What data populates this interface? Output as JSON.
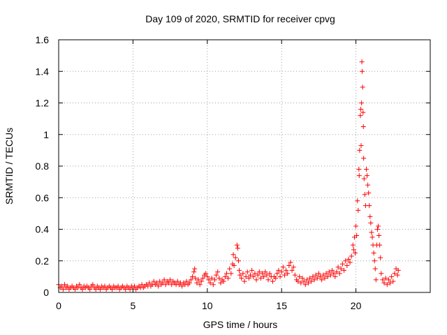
{
  "chart_data": {
    "type": "scatter",
    "title": "Day 109 of 2020, SRMTID for receiver cpvg",
    "xlabel": "GPS time / hours",
    "ylabel": "SRMTID / TECUs",
    "xlim": [
      0,
      25
    ],
    "ylim": [
      0,
      1.6
    ],
    "x_ticks": [
      0,
      5,
      10,
      15,
      20
    ],
    "x_tick_labels": [
      "0",
      "5",
      "10",
      "15",
      "20"
    ],
    "y_ticks": [
      0,
      0.2,
      0.4,
      0.6,
      0.8,
      1,
      1.2,
      1.4,
      1.6
    ],
    "y_tick_labels": [
      "0",
      "0.2",
      "0.4",
      "0.6",
      "0.8",
      "1",
      "1.2",
      "1.4",
      "1.6"
    ],
    "grid": true,
    "marker": "+",
    "color": "#ff0000",
    "series": [
      {
        "name": "SRMTID",
        "points": [
          [
            0.0,
            0.05
          ],
          [
            0.1,
            0.03
          ],
          [
            0.2,
            0.04
          ],
          [
            0.3,
            0.02
          ],
          [
            0.4,
            0.05
          ],
          [
            0.5,
            0.03
          ],
          [
            0.6,
            0.04
          ],
          [
            0.7,
            0.02
          ],
          [
            0.8,
            0.03
          ],
          [
            0.9,
            0.04
          ],
          [
            1.0,
            0.03
          ],
          [
            1.1,
            0.02
          ],
          [
            1.2,
            0.04
          ],
          [
            1.3,
            0.03
          ],
          [
            1.4,
            0.05
          ],
          [
            1.5,
            0.03
          ],
          [
            1.6,
            0.02
          ],
          [
            1.7,
            0.04
          ],
          [
            1.8,
            0.03
          ],
          [
            1.9,
            0.04
          ],
          [
            2.0,
            0.03
          ],
          [
            2.1,
            0.02
          ],
          [
            2.2,
            0.04
          ],
          [
            2.3,
            0.05
          ],
          [
            2.4,
            0.03
          ],
          [
            2.5,
            0.02
          ],
          [
            2.6,
            0.04
          ],
          [
            2.7,
            0.03
          ],
          [
            2.8,
            0.02
          ],
          [
            2.9,
            0.04
          ],
          [
            3.0,
            0.03
          ],
          [
            3.1,
            0.04
          ],
          [
            3.2,
            0.02
          ],
          [
            3.3,
            0.03
          ],
          [
            3.4,
            0.04
          ],
          [
            3.5,
            0.03
          ],
          [
            3.6,
            0.02
          ],
          [
            3.7,
            0.04
          ],
          [
            3.8,
            0.03
          ],
          [
            3.9,
            0.03
          ],
          [
            4.0,
            0.04
          ],
          [
            4.1,
            0.02
          ],
          [
            4.2,
            0.03
          ],
          [
            4.3,
            0.04
          ],
          [
            4.4,
            0.03
          ],
          [
            4.5,
            0.02
          ],
          [
            4.6,
            0.04
          ],
          [
            4.7,
            0.03
          ],
          [
            4.8,
            0.02
          ],
          [
            4.9,
            0.04
          ],
          [
            5.0,
            0.03
          ],
          [
            5.1,
            0.04
          ],
          [
            5.2,
            0.02
          ],
          [
            5.3,
            0.03
          ],
          [
            5.4,
            0.04
          ],
          [
            5.5,
            0.03
          ],
          [
            5.6,
            0.05
          ],
          [
            5.7,
            0.03
          ],
          [
            5.8,
            0.04
          ],
          [
            5.9,
            0.05
          ],
          [
            6.0,
            0.04
          ],
          [
            6.1,
            0.06
          ],
          [
            6.2,
            0.04
          ],
          [
            6.3,
            0.05
          ],
          [
            6.4,
            0.07
          ],
          [
            6.5,
            0.05
          ],
          [
            6.6,
            0.06
          ],
          [
            6.7,
            0.04
          ],
          [
            6.8,
            0.07
          ],
          [
            6.9,
            0.05
          ],
          [
            7.0,
            0.06
          ],
          [
            7.1,
            0.08
          ],
          [
            7.2,
            0.05
          ],
          [
            7.3,
            0.07
          ],
          [
            7.4,
            0.06
          ],
          [
            7.5,
            0.08
          ],
          [
            7.6,
            0.05
          ],
          [
            7.7,
            0.07
          ],
          [
            7.8,
            0.06
          ],
          [
            7.9,
            0.05
          ],
          [
            8.0,
            0.07
          ],
          [
            8.1,
            0.05
          ],
          [
            8.2,
            0.06
          ],
          [
            8.3,
            0.04
          ],
          [
            8.4,
            0.06
          ],
          [
            8.5,
            0.05
          ],
          [
            8.6,
            0.07
          ],
          [
            8.7,
            0.05
          ],
          [
            8.8,
            0.06
          ],
          [
            8.9,
            0.08
          ],
          [
            9.0,
            0.1
          ],
          [
            9.1,
            0.13
          ],
          [
            9.15,
            0.15
          ],
          [
            9.2,
            0.09
          ],
          [
            9.3,
            0.06
          ],
          [
            9.4,
            0.08
          ],
          [
            9.5,
            0.05
          ],
          [
            9.6,
            0.07
          ],
          [
            9.7,
            0.09
          ],
          [
            9.8,
            0.11
          ],
          [
            9.9,
            0.12
          ],
          [
            10.0,
            0.1
          ],
          [
            10.1,
            0.08
          ],
          [
            10.2,
            0.06
          ],
          [
            10.3,
            0.09
          ],
          [
            10.4,
            0.05
          ],
          [
            10.5,
            0.08
          ],
          [
            10.6,
            0.11
          ],
          [
            10.7,
            0.13
          ],
          [
            10.8,
            0.09
          ],
          [
            10.9,
            0.06
          ],
          [
            11.0,
            0.08
          ],
          [
            11.1,
            0.07
          ],
          [
            11.2,
            0.1
          ],
          [
            11.3,
            0.12
          ],
          [
            11.4,
            0.09
          ],
          [
            11.5,
            0.15
          ],
          [
            11.6,
            0.12
          ],
          [
            11.7,
            0.18
          ],
          [
            11.75,
            0.24
          ],
          [
            11.8,
            0.17
          ],
          [
            11.9,
            0.22
          ],
          [
            12.0,
            0.3
          ],
          [
            12.05,
            0.28
          ],
          [
            12.1,
            0.2
          ],
          [
            12.15,
            0.14
          ],
          [
            12.2,
            0.11
          ],
          [
            12.3,
            0.09
          ],
          [
            12.4,
            0.12
          ],
          [
            12.5,
            0.07
          ],
          [
            12.6,
            0.1
          ],
          [
            12.7,
            0.13
          ],
          [
            12.8,
            0.09
          ],
          [
            12.9,
            0.11
          ],
          [
            13.0,
            0.14
          ],
          [
            13.1,
            0.1
          ],
          [
            13.2,
            0.12
          ],
          [
            13.3,
            0.08
          ],
          [
            13.4,
            0.11
          ],
          [
            13.5,
            0.13
          ],
          [
            13.6,
            0.09
          ],
          [
            13.7,
            0.12
          ],
          [
            13.8,
            0.1
          ],
          [
            13.9,
            0.13
          ],
          [
            14.0,
            0.11
          ],
          [
            14.1,
            0.08
          ],
          [
            14.2,
            0.12
          ],
          [
            14.3,
            0.1
          ],
          [
            14.4,
            0.07
          ],
          [
            14.5,
            0.1
          ],
          [
            14.6,
            0.09
          ],
          [
            14.7,
            0.12
          ],
          [
            14.8,
            0.14
          ],
          [
            14.9,
            0.1
          ],
          [
            15.0,
            0.13
          ],
          [
            15.1,
            0.16
          ],
          [
            15.2,
            0.11
          ],
          [
            15.3,
            0.14
          ],
          [
            15.4,
            0.12
          ],
          [
            15.5,
            0.17
          ],
          [
            15.6,
            0.19
          ],
          [
            15.7,
            0.14
          ],
          [
            15.8,
            0.16
          ],
          [
            15.9,
            0.11
          ],
          [
            16.0,
            0.08
          ],
          [
            16.1,
            0.07
          ],
          [
            16.2,
            0.1
          ],
          [
            16.3,
            0.06
          ],
          [
            16.4,
            0.09
          ],
          [
            16.5,
            0.07
          ],
          [
            16.6,
            0.05
          ],
          [
            16.7,
            0.08
          ],
          [
            16.8,
            0.06
          ],
          [
            16.9,
            0.09
          ],
          [
            17.0,
            0.07
          ],
          [
            17.1,
            0.1
          ],
          [
            17.2,
            0.08
          ],
          [
            17.3,
            0.11
          ],
          [
            17.4,
            0.09
          ],
          [
            17.5,
            0.12
          ],
          [
            17.6,
            0.1
          ],
          [
            17.7,
            0.08
          ],
          [
            17.8,
            0.11
          ],
          [
            17.9,
            0.09
          ],
          [
            18.0,
            0.12
          ],
          [
            18.1,
            0.1
          ],
          [
            18.2,
            0.13
          ],
          [
            18.3,
            0.11
          ],
          [
            18.4,
            0.14
          ],
          [
            18.5,
            0.12
          ],
          [
            18.6,
            0.1
          ],
          [
            18.7,
            0.13
          ],
          [
            18.8,
            0.16
          ],
          [
            18.9,
            0.12
          ],
          [
            19.0,
            0.15
          ],
          [
            19.1,
            0.18
          ],
          [
            19.2,
            0.14
          ],
          [
            19.3,
            0.2
          ],
          [
            19.4,
            0.17
          ],
          [
            19.5,
            0.21
          ],
          [
            19.6,
            0.19
          ],
          [
            19.7,
            0.23
          ],
          [
            19.8,
            0.3
          ],
          [
            19.85,
            0.27
          ],
          [
            19.9,
            0.35
          ],
          [
            19.95,
            0.25
          ],
          [
            20.0,
            0.42
          ],
          [
            20.05,
            0.36
          ],
          [
            20.1,
            0.58
          ],
          [
            20.15,
            0.52
          ],
          [
            20.2,
            0.78
          ],
          [
            20.22,
            0.74
          ],
          [
            20.25,
            0.9
          ],
          [
            20.3,
            1.12
          ],
          [
            20.33,
            1.16
          ],
          [
            20.35,
            0.93
          ],
          [
            20.38,
            1.2
          ],
          [
            20.4,
            1.46
          ],
          [
            20.42,
            1.4
          ],
          [
            20.45,
            1.3
          ],
          [
            20.48,
            1.14
          ],
          [
            20.5,
            1.05
          ],
          [
            20.52,
            0.85
          ],
          [
            20.55,
            0.72
          ],
          [
            20.6,
            0.62
          ],
          [
            20.65,
            0.55
          ],
          [
            20.7,
            0.78
          ],
          [
            20.75,
            0.74
          ],
          [
            20.8,
            0.68
          ],
          [
            20.85,
            0.63
          ],
          [
            20.9,
            0.55
          ],
          [
            20.95,
            0.48
          ],
          [
            21.0,
            0.44
          ],
          [
            21.05,
            0.38
          ],
          [
            21.1,
            0.35
          ],
          [
            21.15,
            0.3
          ],
          [
            21.2,
            0.25
          ],
          [
            21.25,
            0.2
          ],
          [
            21.3,
            0.15
          ],
          [
            21.35,
            0.08
          ],
          [
            21.4,
            0.3
          ],
          [
            21.45,
            0.4
          ],
          [
            21.5,
            0.42
          ],
          [
            21.55,
            0.36
          ],
          [
            21.6,
            0.3
          ],
          [
            21.65,
            0.22
          ],
          [
            21.7,
            0.12
          ],
          [
            21.8,
            0.08
          ],
          [
            21.9,
            0.06
          ],
          [
            22.0,
            0.09
          ],
          [
            22.1,
            0.05
          ],
          [
            22.2,
            0.08
          ],
          [
            22.3,
            0.06
          ],
          [
            22.4,
            0.1
          ],
          [
            22.5,
            0.07
          ],
          [
            22.6,
            0.12
          ],
          [
            22.7,
            0.15
          ],
          [
            22.8,
            0.11
          ],
          [
            22.85,
            0.14
          ]
        ]
      }
    ]
  }
}
